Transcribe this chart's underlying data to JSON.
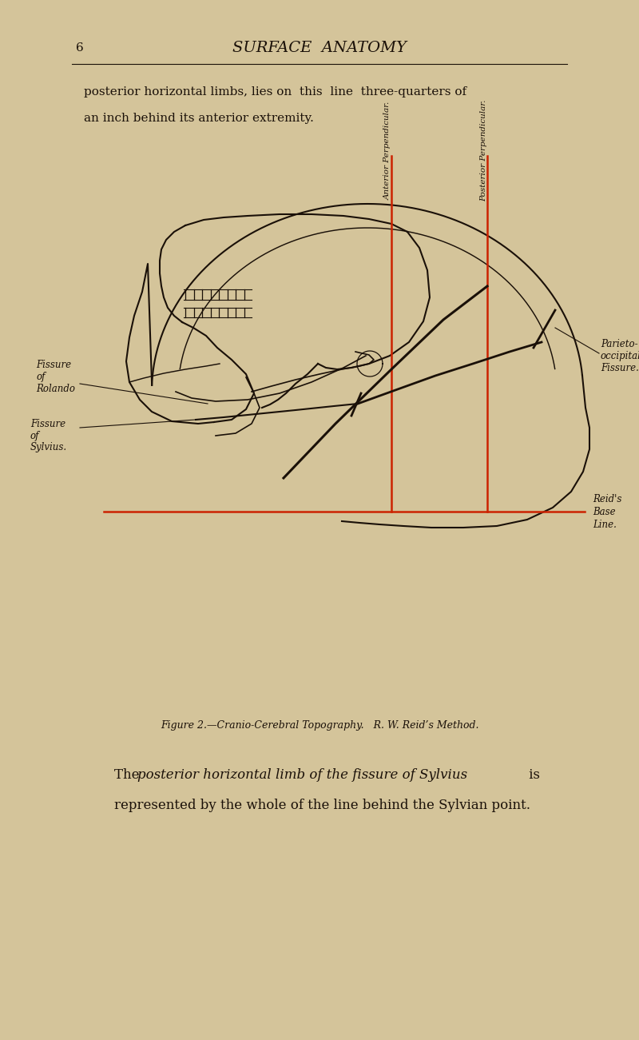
{
  "bg_color": "#d4c49a",
  "black_color": "#1a1008",
  "red_color": "#cc2200",
  "page_number": "6",
  "title_text": "SURFACE  ANATOMY",
  "top_text_line1": "posterior horizontal limbs, lies on  this  line  three-quarters of",
  "top_text_line2": "an inch behind its anterior extremity.",
  "figure_caption": "Figure 2.—Cranio-Cerebral Topography.   R. W. Reid's Method.",
  "label_anterior_perp": "Anterior Perpendicular.",
  "label_posterior_perp": "Posterior Perpendicular.",
  "label_fissure_rolando": "Fissure\nof\nRolando",
  "label_fissure_sylvius": "Fissure\nof\nSylvius.",
  "label_parieto_occipital": "Parieto-\noccipital\nFissure.",
  "label_reids_baseline": "Reid's\nBase\nLine."
}
